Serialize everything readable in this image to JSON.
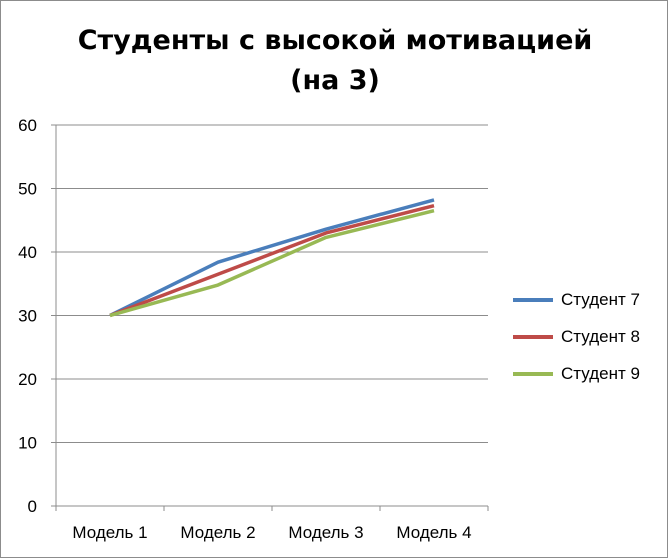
{
  "chart_data": {
    "type": "line",
    "title_line1": "Студенты с высокой мотивацией",
    "title_line2": "(на 3)",
    "categories": [
      "Модель 1",
      "Модель 2",
      "Модель 3",
      "Модель 4"
    ],
    "ylim": [
      0,
      60
    ],
    "yticks": [
      "0",
      "10",
      "20",
      "30",
      "40",
      "50",
      "60"
    ],
    "grid": true,
    "legend_position": "right",
    "series": [
      {
        "name": "Студент 7",
        "values": [
          30,
          38.4,
          43.6,
          48.2
        ],
        "color": "#4a7ebb"
      },
      {
        "name": "Студент 8",
        "values": [
          30,
          36.5,
          43,
          47.3
        ],
        "color": "#be4b48"
      },
      {
        "name": "Студент 9",
        "values": [
          30,
          34.8,
          42.3,
          46.5
        ],
        "color": "#98b954"
      }
    ]
  }
}
